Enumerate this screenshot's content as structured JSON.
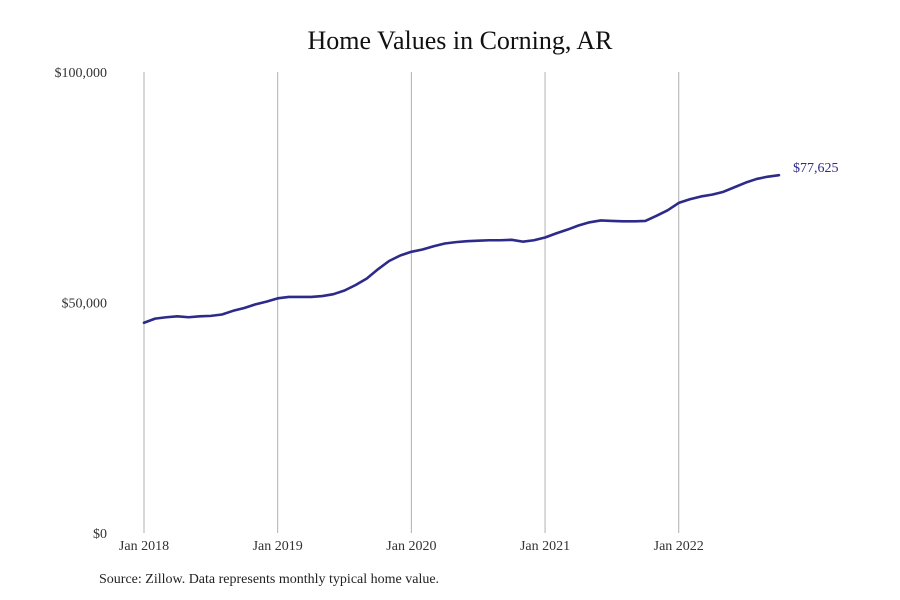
{
  "chart_data": {
    "type": "line",
    "title": "Home Values in Corning, AR",
    "xlabel": "",
    "ylabel": "",
    "ylim": [
      0,
      100000
    ],
    "xlim": [
      "2018-01",
      "2022-10"
    ],
    "yticks": [
      {
        "value": 0,
        "label": "$0"
      },
      {
        "value": 50000,
        "label": "$50,000"
      },
      {
        "value": 100000,
        "label": "$100,000"
      }
    ],
    "xticks": [
      {
        "value": "2018-01",
        "label": "Jan 2018"
      },
      {
        "value": "2019-01",
        "label": "Jan 2019"
      },
      {
        "value": "2020-01",
        "label": "Jan 2020"
      },
      {
        "value": "2021-01",
        "label": "Jan 2021"
      },
      {
        "value": "2022-01",
        "label": "Jan 2022"
      }
    ],
    "grid": "vertical",
    "line_color": "#2e2a8a",
    "end_label": "$77,625",
    "series": [
      {
        "x": [
          "2018-01",
          "2018-02",
          "2018-03",
          "2018-04",
          "2018-05",
          "2018-06",
          "2018-07",
          "2018-08",
          "2018-09",
          "2018-10",
          "2018-11",
          "2018-12",
          "2019-01",
          "2019-02",
          "2019-03",
          "2019-04",
          "2019-05",
          "2019-06",
          "2019-07",
          "2019-08",
          "2019-09",
          "2019-10",
          "2019-11",
          "2019-12",
          "2020-01",
          "2020-02",
          "2020-03",
          "2020-04",
          "2020-05",
          "2020-06",
          "2020-07",
          "2020-08",
          "2020-09",
          "2020-10",
          "2020-11",
          "2020-12",
          "2021-01",
          "2021-02",
          "2021-03",
          "2021-04",
          "2021-05",
          "2021-06",
          "2021-07",
          "2021-08",
          "2021-09",
          "2021-10",
          "2021-11",
          "2021-12",
          "2022-01",
          "2022-02",
          "2022-03",
          "2022-04",
          "2022-05",
          "2022-06",
          "2022-07",
          "2022-08",
          "2022-09",
          "2022-10"
        ],
        "values": [
          45600,
          46500,
          46800,
          47000,
          46800,
          47000,
          47100,
          47400,
          48200,
          48800,
          49600,
          50200,
          50900,
          51200,
          51200,
          51200,
          51400,
          51800,
          52600,
          53800,
          55200,
          57200,
          59000,
          60200,
          61000,
          61500,
          62200,
          62800,
          63100,
          63300,
          63400,
          63500,
          63500,
          63600,
          63200,
          63500,
          64100,
          65000,
          65800,
          66700,
          67400,
          67800,
          67700,
          67600,
          67600,
          67700,
          68800,
          70000,
          71600,
          72400,
          73000,
          73400,
          74000,
          75000,
          76000,
          76800,
          77300,
          77625
        ]
      }
    ]
  },
  "source_note": "Source: Zillow. Data represents monthly typical home value."
}
